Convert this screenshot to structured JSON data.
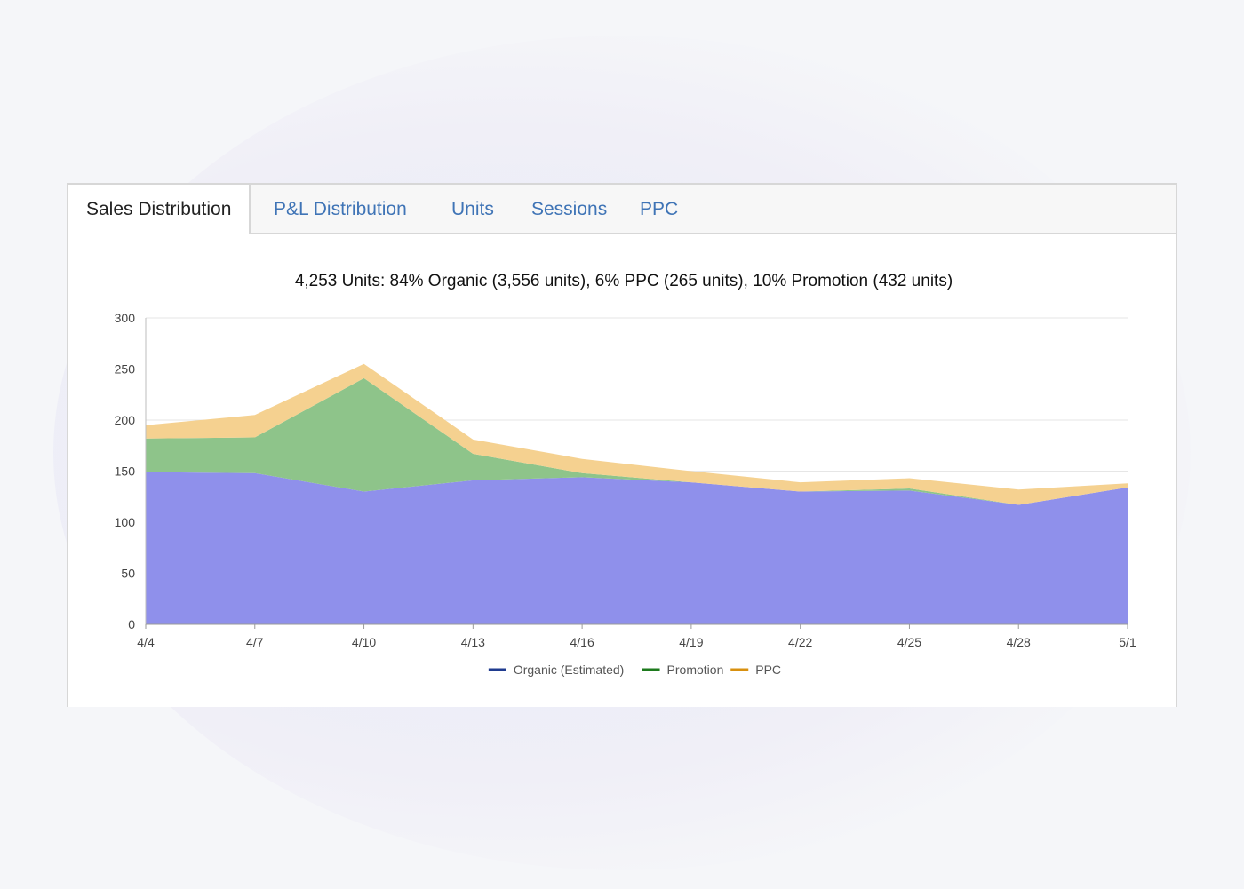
{
  "tabs": [
    {
      "label": "Sales Distribution",
      "active": true
    },
    {
      "label": "P&L Distribution",
      "active": false
    },
    {
      "label": "Units",
      "active": false
    },
    {
      "label": "Sessions",
      "active": false
    },
    {
      "label": "PPC",
      "active": false
    }
  ],
  "chart_data": {
    "type": "area",
    "stacked": true,
    "title": "4,253 Units: 84% Organic (3,556 units), 6% PPC (265 units), 10% Promotion (432 units)",
    "xlabel": "",
    "ylabel": "",
    "ylim": [
      0,
      300
    ],
    "yticks": [
      "0",
      "50",
      "100",
      "150",
      "200",
      "250",
      "300"
    ],
    "x": [
      "4/4",
      "4/7",
      "4/10",
      "4/13",
      "4/16",
      "4/19",
      "4/22",
      "4/25",
      "4/28",
      "5/1"
    ],
    "grid": true,
    "legend": "bottom",
    "series": [
      {
        "name": "Organic (Estimated)",
        "color": "#1f3b8f",
        "fill": "#8f90eb",
        "values": [
          149,
          148,
          130,
          141,
          144,
          139,
          130,
          131,
          117,
          134
        ]
      },
      {
        "name": "Promotion",
        "color": "#1d7a1d",
        "fill": "#8ec48a",
        "values": [
          33,
          35,
          111,
          26,
          4,
          0,
          0,
          2,
          0,
          0
        ]
      },
      {
        "name": "PPC",
        "color": "#d8900f",
        "fill": "#f5d190",
        "values": [
          13,
          22,
          14,
          14,
          14,
          11,
          9,
          10,
          15,
          4
        ]
      }
    ]
  }
}
